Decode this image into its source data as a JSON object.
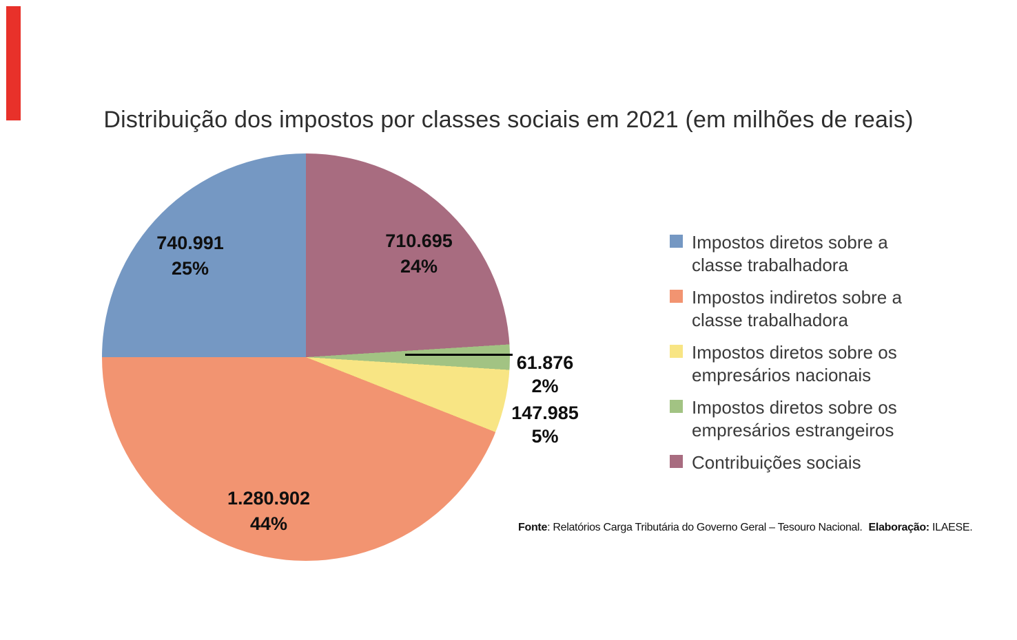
{
  "title": "Distribuição dos impostos por classes sociais em 2021 (em milhões de reais)",
  "marker_bar": {
    "color": "#e8312a"
  },
  "chart_data": {
    "type": "pie",
    "title": "Distribuição dos impostos por classes sociais em 2021 (em milhões de reais)",
    "unit": "milhões de reais",
    "legend_position": "right",
    "slices": [
      {
        "label": "Impostos diretos sobre a classe trabalhadora",
        "value": 740991,
        "pct": 25,
        "display_value": "740.991",
        "display_pct": "25%",
        "color": "#7598c3"
      },
      {
        "label": "Impostos indiretos sobre a classe trabalhadora",
        "value": 1280902,
        "pct": 44,
        "display_value": "1.280.902",
        "display_pct": "44%",
        "color": "#f29471"
      },
      {
        "label": "Impostos diretos sobre os empresários nacionais",
        "value": 147985,
        "pct": 5,
        "display_value": "147.985",
        "display_pct": "5%",
        "color": "#f8e584"
      },
      {
        "label": "Impostos diretos sobre os empresários estrangeiros",
        "value": 61876,
        "pct": 2,
        "display_value": "61.876",
        "display_pct": "2%",
        "color": "#a2c383"
      },
      {
        "label": "Contribuições sociais",
        "value": 710695,
        "pct": 24,
        "display_value": "710.695",
        "display_pct": "24%",
        "color": "#a86c80"
      }
    ],
    "clockwise_order_indices": [
      4,
      3,
      2,
      1,
      0
    ],
    "start_angle_deg": 0
  },
  "legend": {
    "items": [
      {
        "line1": "Impostos diretos sobre a",
        "line2": "classe trabalhadora"
      },
      {
        "line1": "Impostos indiretos sobre a",
        "line2": "classe trabalhadora"
      },
      {
        "line1": "Impostos diretos sobre os",
        "line2": "empresários nacionais"
      },
      {
        "line1": "Impostos diretos sobre os",
        "line2": "empresários estrangeiros"
      },
      {
        "line1": "Contribuições sociais",
        "line2": ""
      }
    ]
  },
  "footer": {
    "fonte_label": "Fonte",
    "fonte_text": ": Relatórios Carga Tributária do Governo Geral – Tesouro Nacional.",
    "elaboracao_label": "Elaboração:",
    "elaboracao_text": " ILAESE."
  }
}
